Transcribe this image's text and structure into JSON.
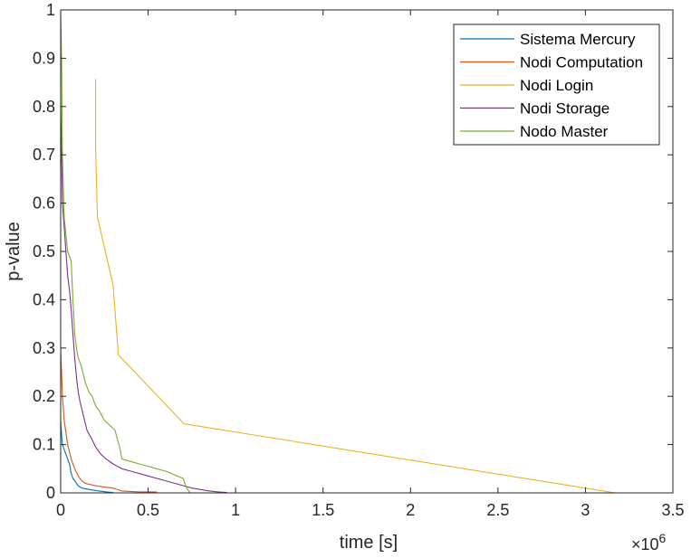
{
  "chart_data": {
    "type": "line",
    "xlabel": "time [s]",
    "ylabel": "p-value",
    "x_exponent_label": "×10",
    "x_exponent": "6",
    "x_multiplier": 1000000,
    "xlim": [
      0,
      3500000
    ],
    "ylim": [
      0,
      1
    ],
    "x_ticks": [
      0,
      500000,
      1000000,
      1500000,
      2000000,
      2500000,
      3000000,
      3500000
    ],
    "x_tick_labels": [
      "0",
      "0.5",
      "1",
      "1.5",
      "2",
      "2.5",
      "3",
      "3.5"
    ],
    "y_ticks": [
      0,
      0.1,
      0.2,
      0.3,
      0.4,
      0.5,
      0.6,
      0.7,
      0.8,
      0.9,
      1
    ],
    "y_tick_labels": [
      "0",
      "0.1",
      "0.2",
      "0.3",
      "0.4",
      "0.5",
      "0.6",
      "0.7",
      "0.8",
      "0.9",
      "1"
    ],
    "grid": false,
    "legend_position": "top-right",
    "series": [
      {
        "name": "Sistema Mercury",
        "color": "#0072BD",
        "x": [
          0,
          5000,
          10000,
          20000,
          30000,
          40000,
          50000,
          60000,
          70000,
          80000,
          100000,
          120000,
          150000,
          180000,
          220000,
          260000,
          300000
        ],
        "y": [
          0.15,
          0.12,
          0.1,
          0.09,
          0.08,
          0.07,
          0.06,
          0.04,
          0.03,
          0.025,
          0.015,
          0.01,
          0.008,
          0.006,
          0.004,
          0.002,
          0.001
        ]
      },
      {
        "name": "Nodi Computation",
        "color": "#D95319",
        "x": [
          0,
          10000,
          20000,
          40000,
          60000,
          80000,
          100000,
          120000,
          140000,
          160000,
          200000,
          250000,
          300000,
          350000,
          400000,
          450000,
          500000,
          550000
        ],
        "y": [
          0.3,
          0.2,
          0.15,
          0.1,
          0.07,
          0.05,
          0.035,
          0.025,
          0.02,
          0.018,
          0.015,
          0.012,
          0.01,
          0.004,
          0.003,
          0.002,
          0.002,
          0.002
        ]
      },
      {
        "name": "Nodi Login",
        "color": "#EDB120",
        "x": [
          200000,
          200000,
          210000,
          300000,
          330000,
          705000,
          3170000
        ],
        "y": [
          0.857,
          0.71,
          0.571,
          0.43,
          0.286,
          0.143,
          0
        ]
      },
      {
        "name": "Nodi Storage",
        "color": "#7E2F8E",
        "x": [
          0,
          5000,
          10000,
          20000,
          30000,
          40000,
          50000,
          60000,
          70000,
          80000,
          90000,
          100000,
          110000,
          130000,
          150000,
          180000,
          200000,
          230000,
          260000,
          300000,
          350000,
          400000,
          500000,
          550000,
          600000,
          700000,
          750000,
          800000,
          850000,
          900000,
          950000
        ],
        "y": [
          0.8,
          0.7,
          0.6,
          0.55,
          0.5,
          0.45,
          0.42,
          0.38,
          0.33,
          0.28,
          0.24,
          0.21,
          0.19,
          0.16,
          0.13,
          0.11,
          0.095,
          0.08,
          0.07,
          0.06,
          0.05,
          0.045,
          0.035,
          0.03,
          0.025,
          0.015,
          0.01,
          0.007,
          0.004,
          0.002,
          0.001
        ]
      },
      {
        "name": "Nodo Master",
        "color": "#77AC30",
        "x": [
          0,
          5000,
          10000,
          20000,
          40000,
          60000,
          70000,
          80000,
          90000,
          100000,
          120000,
          140000,
          160000,
          180000,
          200000,
          220000,
          250000,
          280000,
          310000,
          340000,
          350000,
          400000,
          450000,
          500000,
          550000,
          600000,
          700000,
          720000,
          740000
        ],
        "y": [
          1.0,
          0.9,
          0.7,
          0.57,
          0.5,
          0.48,
          0.4,
          0.33,
          0.3,
          0.28,
          0.26,
          0.23,
          0.21,
          0.2,
          0.18,
          0.17,
          0.15,
          0.14,
          0.13,
          0.09,
          0.07,
          0.065,
          0.06,
          0.055,
          0.05,
          0.045,
          0.03,
          0.01,
          0.0
        ]
      }
    ]
  }
}
